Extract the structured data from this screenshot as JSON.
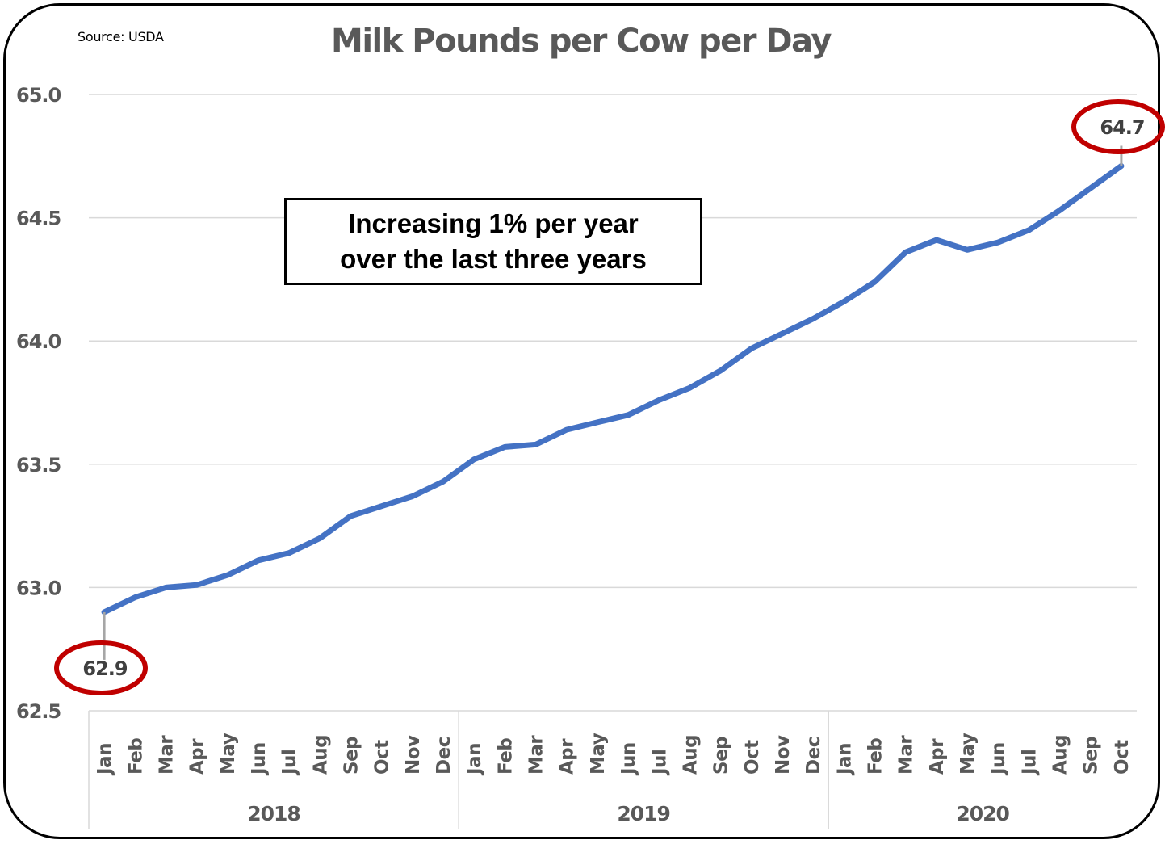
{
  "header": {
    "source": "Source: USDA",
    "title": "Milk Pounds per Cow per Day"
  },
  "callout": {
    "line1": "Increasing 1% per year",
    "line2": "over the last three years"
  },
  "colors": {
    "line": "#4472C4",
    "highlight_ellipse": "#C00000",
    "gridline": "#D9D9D9",
    "axis_text": "#595959",
    "leader_line": "#A6A6A6"
  },
  "chart_data": {
    "type": "line",
    "title": "Milk Pounds per Cow per Day",
    "subtitle": "Source: USDA",
    "xlabel": "",
    "ylabel": "",
    "ylim": [
      62.5,
      65.0
    ],
    "yticks": [
      "62.5",
      "63.0",
      "63.5",
      "64.0",
      "64.5",
      "65.0"
    ],
    "grid": true,
    "legend": null,
    "year_groups": [
      {
        "label": "2018",
        "months": [
          "Jan",
          "Feb",
          "Mar",
          "Apr",
          "May",
          "Jun",
          "Jul",
          "Aug",
          "Sep",
          "Oct",
          "Nov",
          "Dec"
        ]
      },
      {
        "label": "2019",
        "months": [
          "Jan",
          "Feb",
          "Mar",
          "Apr",
          "May",
          "Jun",
          "Jul",
          "Aug",
          "Sep",
          "Oct",
          "Nov",
          "Dec"
        ]
      },
      {
        "label": "2020",
        "months": [
          "Jan",
          "Feb",
          "Mar",
          "Apr",
          "May",
          "Jun",
          "Jul",
          "Aug",
          "Sep",
          "Oct"
        ]
      }
    ],
    "categories": [
      "Jan 2018",
      "Feb 2018",
      "Mar 2018",
      "Apr 2018",
      "May 2018",
      "Jun 2018",
      "Jul 2018",
      "Aug 2018",
      "Sep 2018",
      "Oct 2018",
      "Nov 2018",
      "Dec 2018",
      "Jan 2019",
      "Feb 2019",
      "Mar 2019",
      "Apr 2019",
      "May 2019",
      "Jun 2019",
      "Jul 2019",
      "Aug 2019",
      "Sep 2019",
      "Oct 2019",
      "Nov 2019",
      "Dec 2019",
      "Jan 2020",
      "Feb 2020",
      "Mar 2020",
      "Apr 2020",
      "May 2020",
      "Jun 2020",
      "Jul 2020",
      "Aug 2020",
      "Sep 2020",
      "Oct 2020"
    ],
    "series": [
      {
        "name": "Milk pounds per cow per day",
        "values": [
          62.9,
          62.96,
          63.0,
          63.01,
          63.05,
          63.11,
          63.14,
          63.2,
          63.29,
          63.33,
          63.37,
          63.43,
          63.52,
          63.57,
          63.58,
          63.64,
          63.67,
          63.7,
          63.76,
          63.81,
          63.88,
          63.97,
          64.03,
          64.09,
          64.16,
          64.24,
          64.36,
          64.41,
          64.37,
          64.4,
          64.45,
          64.53,
          64.62,
          64.71
        ]
      }
    ],
    "annotations": [
      {
        "category": "Jan 2018",
        "label": "62.9",
        "style": "red-ellipse",
        "position": "below"
      },
      {
        "category": "Oct 2020",
        "label": "64.7",
        "style": "red-ellipse",
        "position": "above"
      },
      {
        "text": "Increasing 1% per year over the last three years",
        "style": "boxed"
      }
    ]
  }
}
